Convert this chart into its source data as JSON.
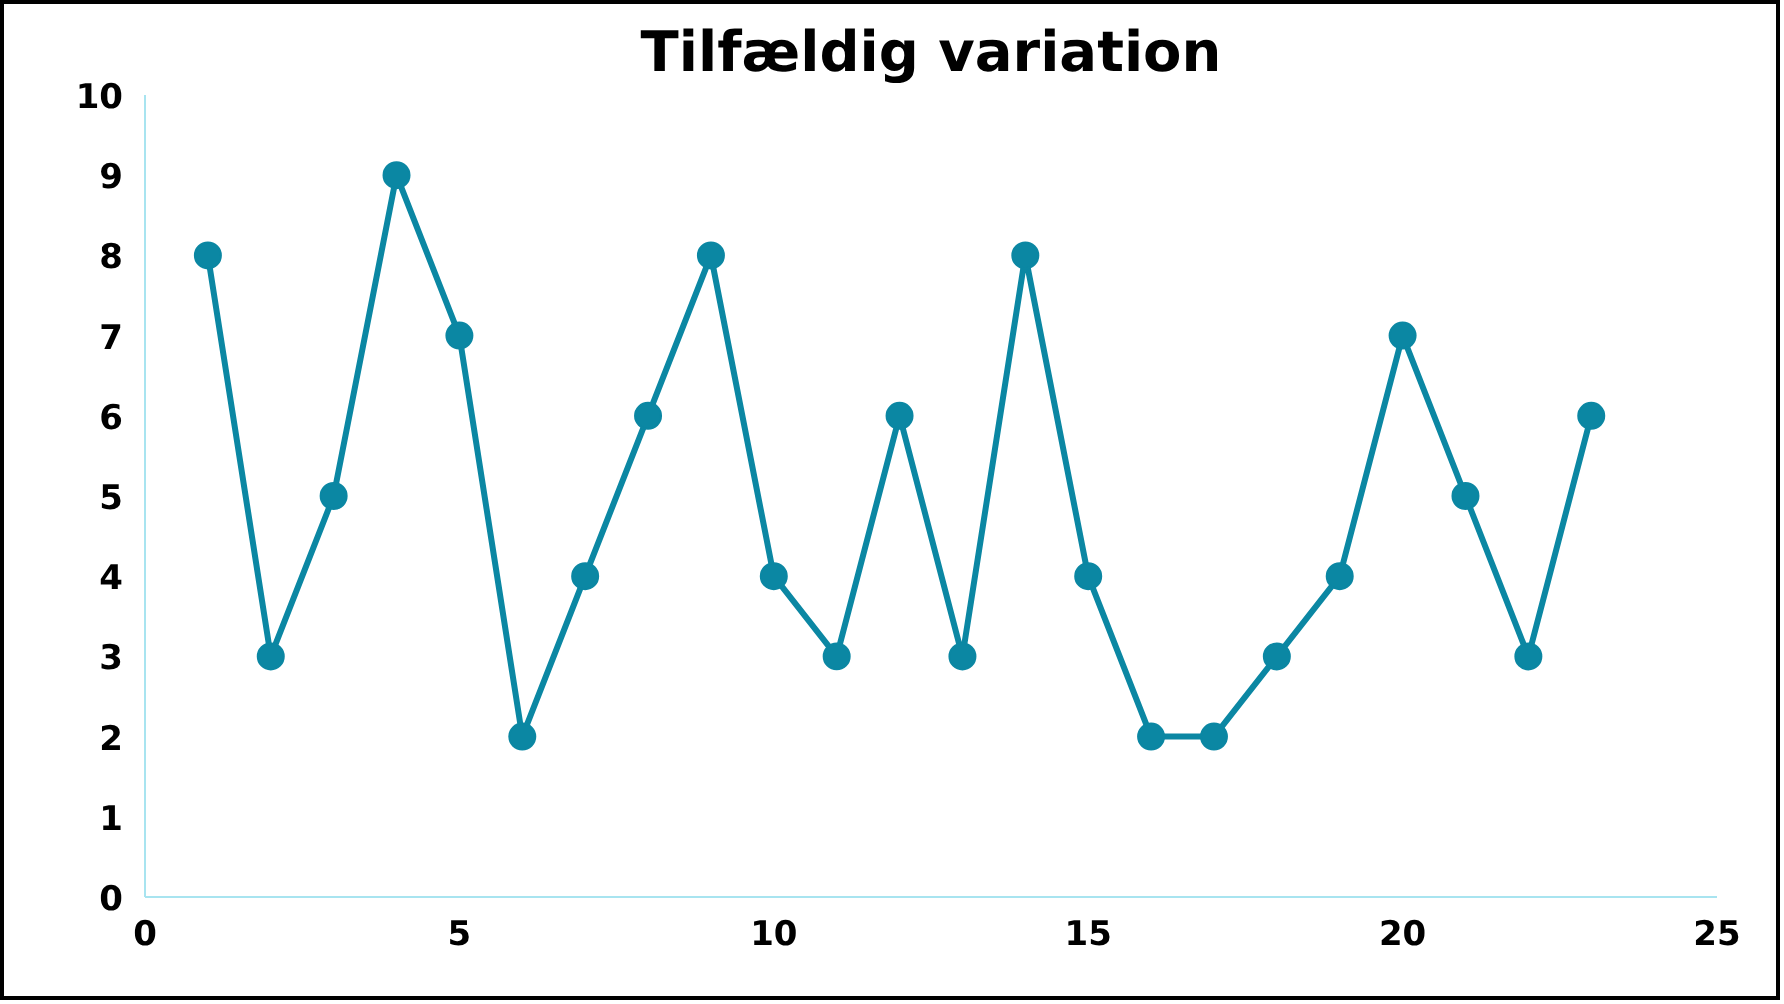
{
  "chart_data": {
    "type": "line",
    "title": "Tilfældig variation",
    "x": [
      1,
      2,
      3,
      4,
      5,
      6,
      7,
      8,
      9,
      10,
      11,
      12,
      13,
      14,
      15,
      16,
      17,
      18,
      19,
      20,
      21,
      22,
      23
    ],
    "series": [
      {
        "color": "#0b87a3",
        "values": [
          8,
          3,
          5,
          9,
          7,
          2,
          4,
          6,
          8,
          4,
          3,
          6,
          3,
          8,
          4,
          2,
          2,
          3,
          4,
          7,
          5,
          3,
          6
        ]
      }
    ],
    "xlim": [
      0,
      25
    ],
    "xticks": [
      0,
      5,
      10,
      15,
      20,
      25
    ],
    "ylim": [
      0,
      10
    ],
    "yticks": [
      0,
      1,
      2,
      3,
      4,
      5,
      6,
      7,
      8,
      9,
      10
    ],
    "grid": false,
    "marker": "circle",
    "line_style": "solid"
  }
}
